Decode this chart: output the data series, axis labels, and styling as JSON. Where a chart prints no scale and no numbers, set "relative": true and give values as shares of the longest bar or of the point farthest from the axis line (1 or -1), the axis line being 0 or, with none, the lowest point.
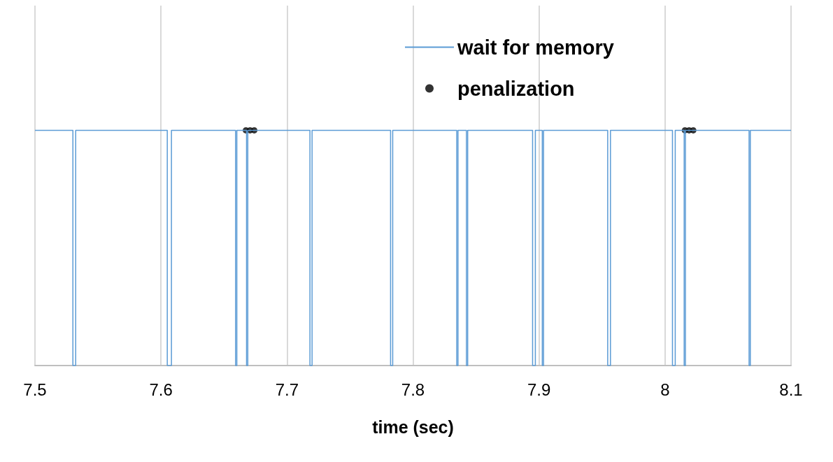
{
  "chart_data": {
    "type": "step",
    "xlabel": "time (sec)",
    "relative": true,
    "xlim": [
      7.5,
      8.1
    ],
    "xticks": [
      7.5,
      7.6,
      7.7,
      7.8,
      7.9,
      8,
      8.1
    ],
    "grid": "x",
    "legend": "top right",
    "series": [
      {
        "name": "wait for memory",
        "type": "step",
        "color": "#5b9bd5",
        "marker": "none",
        "x": [
          7.5,
          7.5301,
          7.5323,
          7.605,
          7.6083,
          7.6592,
          7.6602,
          7.6679,
          7.6689,
          7.7182,
          7.7199,
          7.7822,
          7.7839,
          7.8347,
          7.8357,
          7.8424,
          7.8434,
          7.8949,
          7.8971,
          7.9026,
          7.9036,
          7.9545,
          7.9567,
          8.0059,
          8.0081,
          8.0152,
          8.0162,
          8.0667,
          8.0677,
          8.1
        ],
        "values": [
          1,
          0,
          1,
          0,
          1,
          0,
          1,
          0,
          1,
          0,
          1,
          0,
          1,
          0,
          1,
          0,
          1,
          0,
          1,
          0,
          1,
          0,
          1,
          0,
          1,
          0,
          1,
          0,
          1,
          1
        ]
      },
      {
        "name": "penalization",
        "type": "scatter",
        "color": "#000000",
        "marker": "circle",
        "x": [
          7.6674,
          7.6707,
          7.674,
          8.0158,
          8.0191,
          8.0224
        ],
        "values": [
          1,
          1,
          1,
          1,
          1,
          1
        ]
      }
    ]
  }
}
